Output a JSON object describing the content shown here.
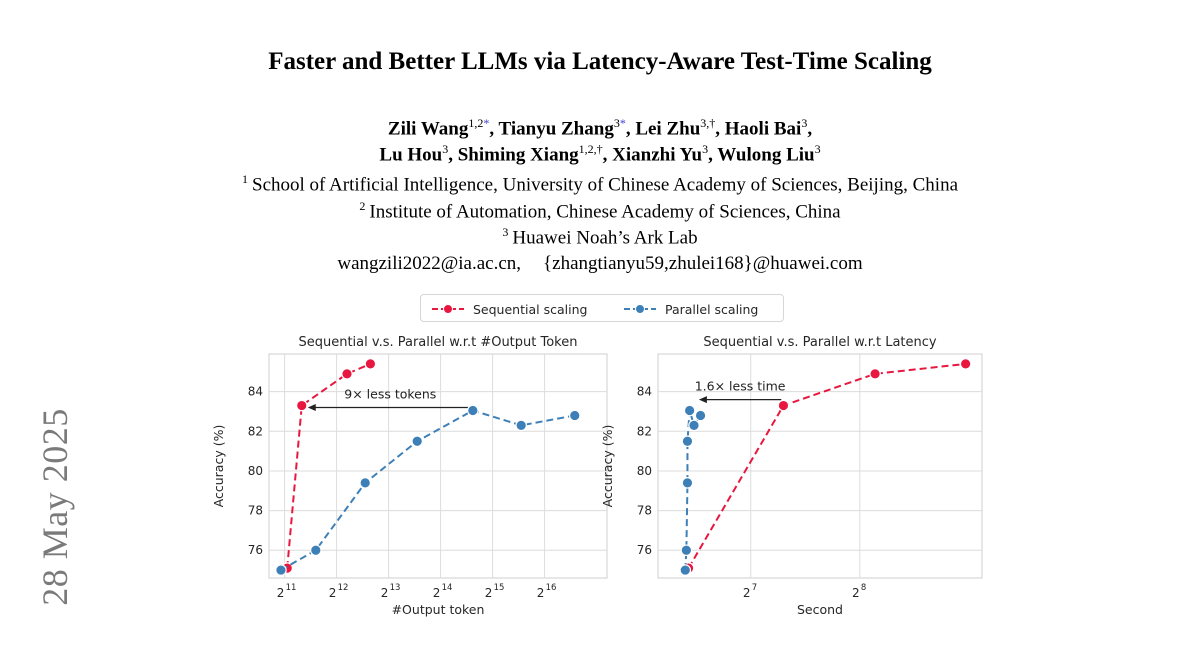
{
  "side_date": "28 May 2025",
  "title": "Faster and Better LLMs via Latency-Aware Test-Time Scaling",
  "authors": {
    "line1": [
      {
        "name": "Zili Wang",
        "sup": "1,2",
        "mark": "*"
      },
      {
        "name": "Tianyu Zhang",
        "sup": "3",
        "mark": "*"
      },
      {
        "name": "Lei Zhu",
        "sup": "3,†",
        "mark": ""
      },
      {
        "name": "Haoli Bai",
        "sup": "3",
        "mark": ""
      }
    ],
    "line2": [
      {
        "name": "Lu Hou",
        "sup": "3",
        "mark": ""
      },
      {
        "name": "Shiming Xiang",
        "sup": "1,2,†",
        "mark": ""
      },
      {
        "name": "Xianzhi Yu",
        "sup": "3",
        "mark": ""
      },
      {
        "name": "Wulong Liu",
        "sup": "3",
        "mark": ""
      }
    ]
  },
  "affiliations": [
    {
      "num": "1",
      "text": "School of Artificial Intelligence, University of Chinese Academy of Sciences, Beijing, China"
    },
    {
      "num": "2",
      "text": "Institute of Automation, Chinese Academy of Sciences, China"
    },
    {
      "num": "3",
      "text": "Huawei Noah’s Ark Lab"
    }
  ],
  "emails": {
    "first": "wangzili2022@ia.ac.cn,",
    "second": "{zhangtianyu59,zhulei168}@huawei.com"
  },
  "legend": {
    "sequential": "Sequential scaling",
    "parallel": "Parallel scaling"
  },
  "colors": {
    "sequential": "#e8173f",
    "parallel": "#3d7fb7",
    "grid": "#dcdcdc",
    "axis_text": "#262626"
  },
  "chart_data": [
    {
      "type": "line",
      "title": "Sequential v.s. Parallel w.r.t #Output Token",
      "xlabel": "#Output token",
      "ylabel": "Accuracy (%)",
      "x_scale": "log2",
      "xlim_log2": [
        10.7,
        17.2
      ],
      "ylim": [
        74.6,
        85.9
      ],
      "x_ticks": [
        {
          "label": "2",
          "exp": "11",
          "log2": 11
        },
        {
          "label": "2",
          "exp": "12",
          "log2": 12
        },
        {
          "label": "2",
          "exp": "13",
          "log2": 13
        },
        {
          "label": "2",
          "exp": "14",
          "log2": 14
        },
        {
          "label": "2",
          "exp": "15",
          "log2": 15
        },
        {
          "label": "2",
          "exp": "16",
          "log2": 16
        }
      ],
      "y_ticks": [
        76,
        78,
        80,
        82,
        84
      ],
      "grid": true,
      "series": [
        {
          "name": "Sequential scaling",
          "x_log2": [
            11.05,
            11.33,
            12.2,
            12.65
          ],
          "y": [
            75.1,
            83.3,
            84.9,
            85.4
          ]
        },
        {
          "name": "Parallel scaling",
          "x_log2": [
            10.93,
            11.6,
            12.55,
            13.55,
            14.62,
            15.55,
            16.58
          ],
          "y": [
            75.0,
            76.0,
            79.4,
            81.5,
            83.05,
            82.3,
            82.8
          ]
        }
      ],
      "annotation": {
        "text": "9× less tokens",
        "from": [
          14.62,
          83.2
        ],
        "to": [
          11.33,
          83.2
        ]
      }
    },
    {
      "type": "line",
      "title": "Sequential v.s. Parallel w.r.t Latency",
      "xlabel": "Second",
      "ylabel": "Accuracy (%)",
      "x_scale": "log2",
      "xlim_log2": [
        6.15,
        9.12
      ],
      "ylim": [
        74.6,
        85.9
      ],
      "x_ticks": [
        {
          "label": "2",
          "exp": "7",
          "log2": 7
        },
        {
          "label": "2",
          "exp": "8",
          "log2": 8
        }
      ],
      "y_ticks": [
        76,
        78,
        80,
        82,
        84
      ],
      "grid": true,
      "series": [
        {
          "name": "Sequential scaling",
          "x_log2": [
            6.43,
            7.3,
            8.14,
            8.97
          ],
          "y": [
            75.1,
            83.3,
            84.9,
            85.4
          ]
        },
        {
          "name": "Parallel scaling",
          "x_log2": [
            6.4,
            6.41,
            6.42,
            6.42,
            6.44,
            6.48,
            6.54
          ],
          "y": [
            75.0,
            76.0,
            79.4,
            81.5,
            83.05,
            82.3,
            82.8
          ]
        }
      ],
      "annotation": {
        "text": "1.6× less time",
        "from": [
          7.28,
          83.6
        ],
        "to": [
          6.47,
          83.6
        ]
      }
    }
  ]
}
